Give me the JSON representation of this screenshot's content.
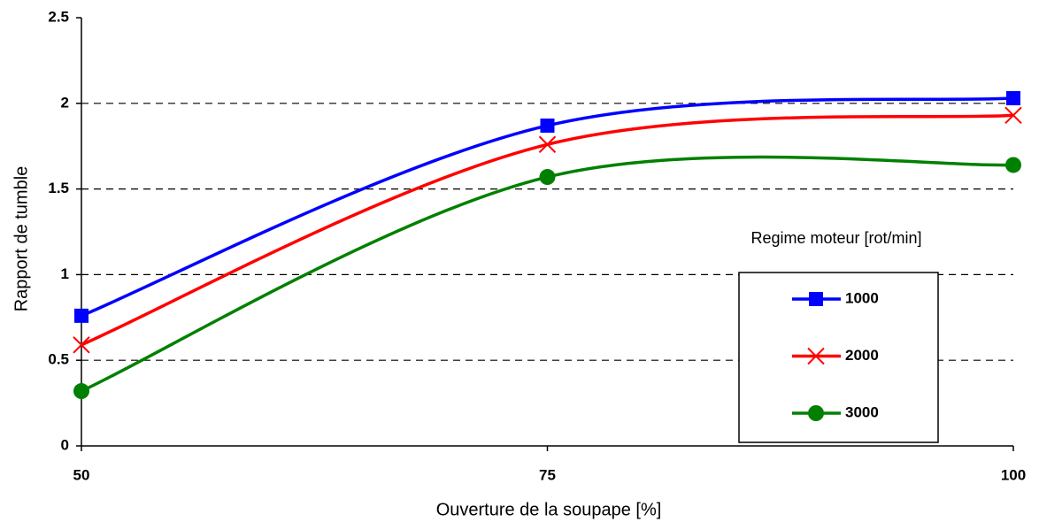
{
  "chart_data": {
    "type": "line",
    "x_label": "Ouverture de la soupape [%]",
    "y_label": "Rapport de tumble",
    "x": [
      50,
      75,
      100
    ],
    "xlim": [
      50,
      100
    ],
    "xticks": [
      50,
      75,
      100
    ],
    "ylim": [
      0,
      2.5
    ],
    "yticks": [
      0,
      0.5,
      1,
      1.5,
      2,
      2.5
    ],
    "grid": true,
    "legend_title": "Regime moteur [rot/min]",
    "legend_position": "lower right",
    "series": [
      {
        "name": "1000",
        "color": "#0000ff",
        "marker": "square",
        "values": [
          0.76,
          1.87,
          2.03
        ]
      },
      {
        "name": "2000",
        "color": "#ff0000",
        "marker": "x",
        "values": [
          0.59,
          1.76,
          1.93
        ]
      },
      {
        "name": "3000",
        "color": "#008000",
        "marker": "circle",
        "values": [
          0.32,
          1.57,
          1.64
        ]
      }
    ]
  }
}
